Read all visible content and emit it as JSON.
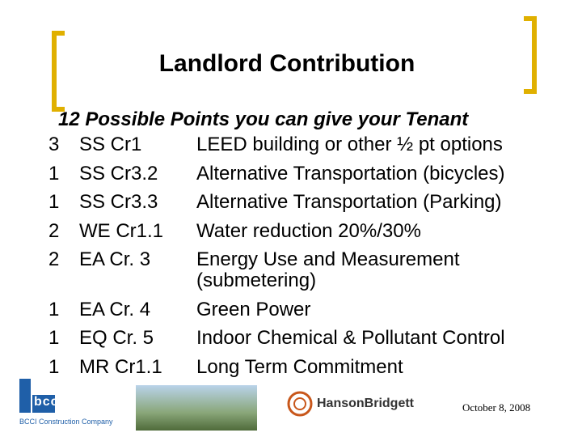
{
  "title": "Landlord Contribution",
  "subtitle": "12 Possible Points you can give your Tenant",
  "rows": [
    [
      "3",
      "SS Cr1",
      "LEED building or other ½ pt options"
    ],
    [
      "1",
      "SS Cr3.2",
      "Alternative Transportation (bicycles)"
    ],
    [
      "1",
      "SS Cr3.3",
      "Alternative Transportation (Parking)"
    ],
    [
      "2",
      "WE Cr1.1",
      "Water reduction 20%/30%"
    ],
    [
      "2",
      "EA Cr. 3",
      "Energy Use and Measurement (submetering)"
    ],
    [
      "1",
      "EA Cr. 4",
      "Green Power"
    ],
    [
      "1",
      "EQ Cr. 5",
      "Indoor Chemical & Pollutant Control"
    ],
    [
      "1",
      "MR Cr1.1",
      "Long Term Commitment"
    ]
  ],
  "footer": {
    "logo_left": "bcci",
    "logo_left_caption": "BCCI Construction Company",
    "logo_right": "HansonBridgett",
    "date": "October 8, 2008"
  }
}
